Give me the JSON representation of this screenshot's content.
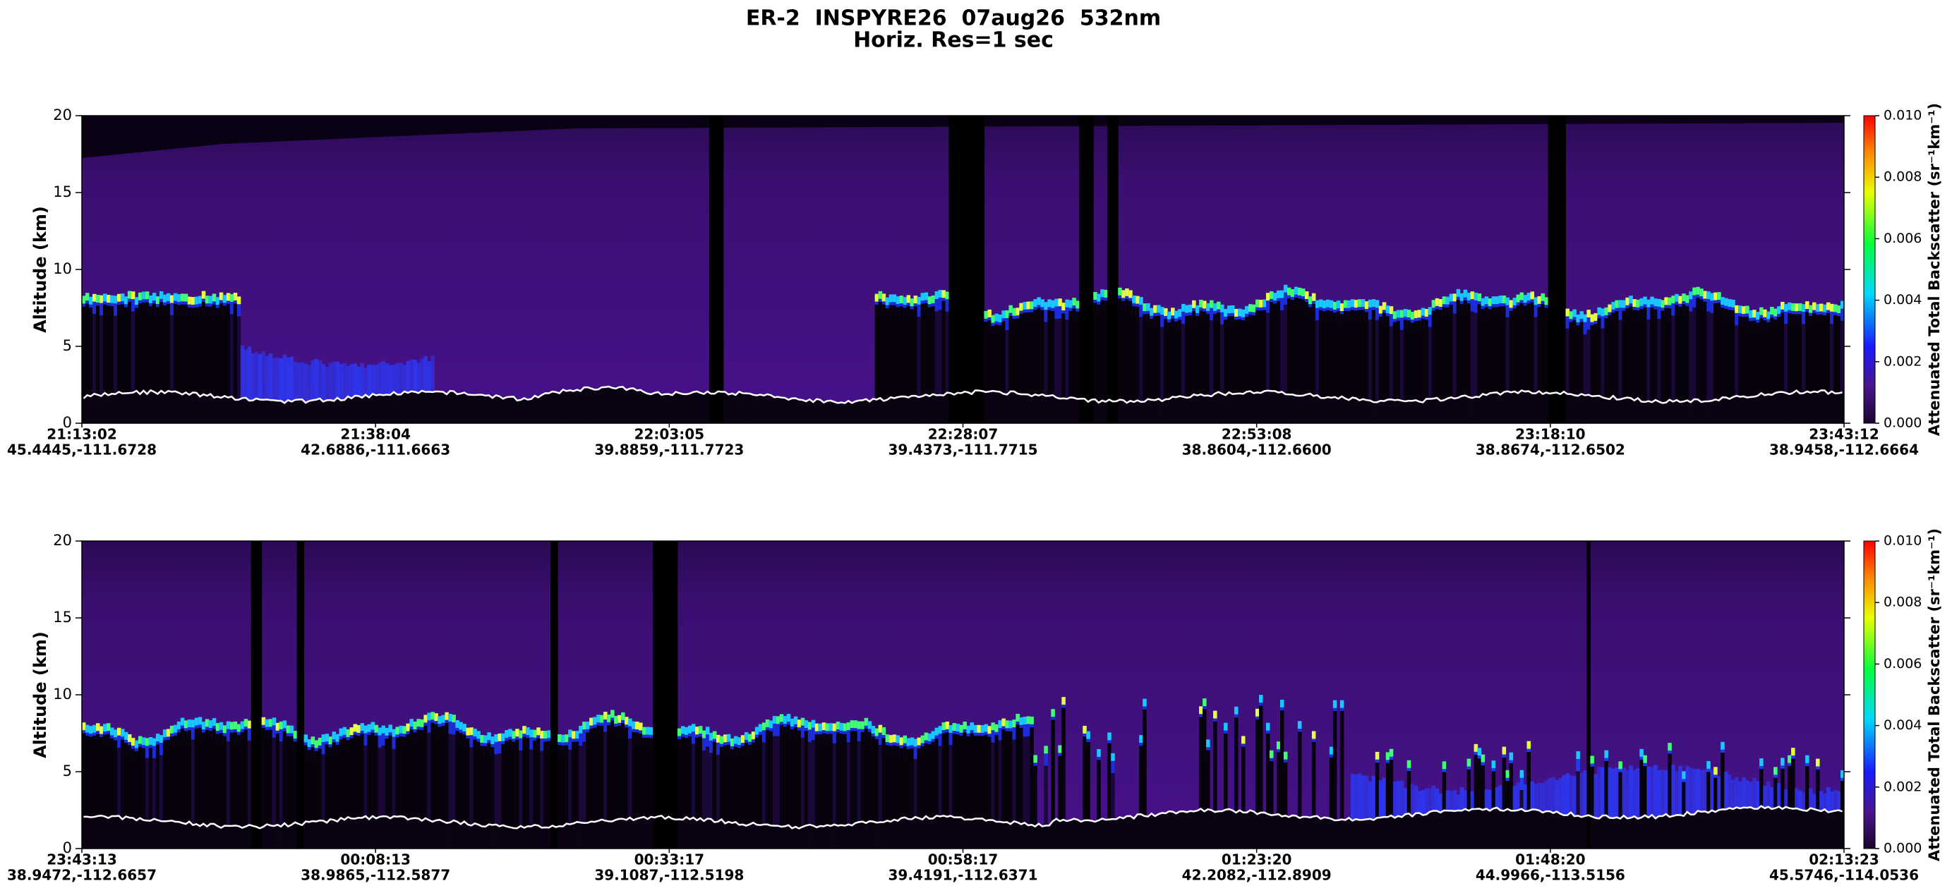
{
  "chart_data": [
    {
      "type": "heatmap",
      "title": "ER-2  INSPYRE26  07aug26  532nm",
      "subtitle": "Horiz. Res=1 sec",
      "y_label": "Altitude (km)",
      "ylim": [
        0,
        20
      ],
      "yticks": [
        0,
        5,
        10,
        15,
        20
      ],
      "x_labels": [
        {
          "time": "21:13:02",
          "location": "45.4445,-111.6728"
        },
        {
          "time": "21:38:04",
          "location": "42.6886,-111.6663"
        },
        {
          "time": "22:03:05",
          "location": "39.8859,-111.7723"
        },
        {
          "time": "22:28:07",
          "location": "39.4373,-111.7715"
        },
        {
          "time": "22:53:08",
          "location": "38.8604,-112.6600"
        },
        {
          "time": "23:18:10",
          "location": "38.8674,-112.6502"
        },
        {
          "time": "23:43:12",
          "location": "38.9458,-112.6664"
        }
      ],
      "colorbar": {
        "label": "Attenuated Total Backscatter (sr⁻¹km⁻¹)",
        "lim": [
          0,
          0.01
        ],
        "ticks": [
          {
            "value": 0,
            "label": "0.000"
          },
          {
            "value": 0.002,
            "label": "0.002"
          },
          {
            "value": 0.004,
            "label": "0.004"
          },
          {
            "value": 0.006,
            "label": "0.006"
          },
          {
            "value": 0.008,
            "label": "0.008"
          },
          {
            "value": 0.01,
            "label": "0.010"
          }
        ]
      }
    },
    {
      "type": "heatmap",
      "y_label": "Altitude (km)",
      "ylim": [
        0,
        20
      ],
      "yticks": [
        0,
        5,
        10,
        15,
        20
      ],
      "x_labels": [
        {
          "time": "23:43:13",
          "location": "38.9472,-112.6657"
        },
        {
          "time": "00:08:13",
          "location": "38.9865,-112.5877"
        },
        {
          "time": "00:33:17",
          "location": "39.1087,-112.5198"
        },
        {
          "time": "00:58:17",
          "location": "39.4191,-112.6371"
        },
        {
          "time": "01:23:20",
          "location": "42.2082,-112.8909"
        },
        {
          "time": "01:48:20",
          "location": "44.9966,-113.5156"
        },
        {
          "time": "02:13:23",
          "location": "45.5746,-114.0536"
        }
      ],
      "colorbar": {
        "label": "Attenuated Total Backscatter (sr⁻¹km⁻¹)",
        "lim": [
          0,
          0.01
        ],
        "ticks": [
          {
            "value": 0,
            "label": "0.000"
          },
          {
            "value": 0.002,
            "label": "0.002"
          },
          {
            "value": 0.004,
            "label": "0.004"
          },
          {
            "value": 0.006,
            "label": "0.006"
          },
          {
            "value": 0.008,
            "label": "0.008"
          },
          {
            "value": 0.01,
            "label": "0.010"
          }
        ]
      }
    }
  ]
}
